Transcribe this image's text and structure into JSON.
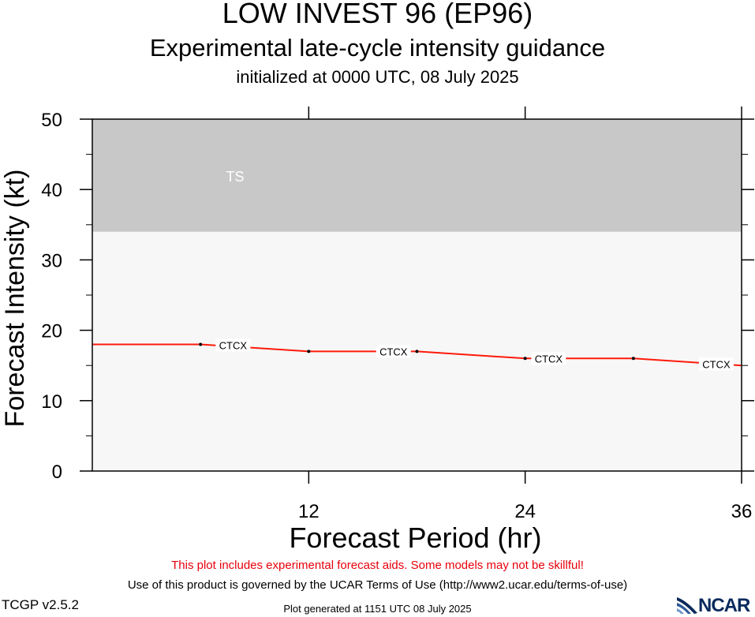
{
  "header": {
    "title": "LOW INVEST 96 (EP96)",
    "subtitle": "Experimental late-cycle intensity guidance",
    "initialized": "initialized at 0000 UTC, 08 July 2025"
  },
  "chart_data": {
    "type": "line",
    "xlabel": "Forecast Period (hr)",
    "ylabel": "Forecast Intensity (kt)",
    "xlim": [
      0,
      36
    ],
    "ylim": [
      0,
      50
    ],
    "x_ticks": [
      12,
      24,
      36
    ],
    "y_ticks": [
      0,
      10,
      20,
      30,
      40,
      50
    ],
    "grid": false,
    "bands": [
      {
        "label": "TS",
        "from": 34,
        "to": 50,
        "color": "#c8c8c8"
      }
    ],
    "below_band_color": "#f7f7f7",
    "series": [
      {
        "name": "CTCX",
        "color": "#ff1a0a",
        "x": [
          0,
          6,
          12,
          18,
          24,
          30,
          36
        ],
        "values": [
          18,
          18,
          17,
          17,
          16,
          16,
          15
        ]
      }
    ]
  },
  "footer": {
    "warning": "This plot includes experimental forecast aids. Some models may not be skillful!",
    "terms": "Use of this product is governed by the UCAR Terms of Use (http://www2.ucar.edu/terms-of-use)",
    "version": "TCGP v2.5.2",
    "generated": "Plot generated at 1151 UTC   08 July 2025",
    "logo_text": "NCAR",
    "logo_color": "#0a2a5c"
  }
}
